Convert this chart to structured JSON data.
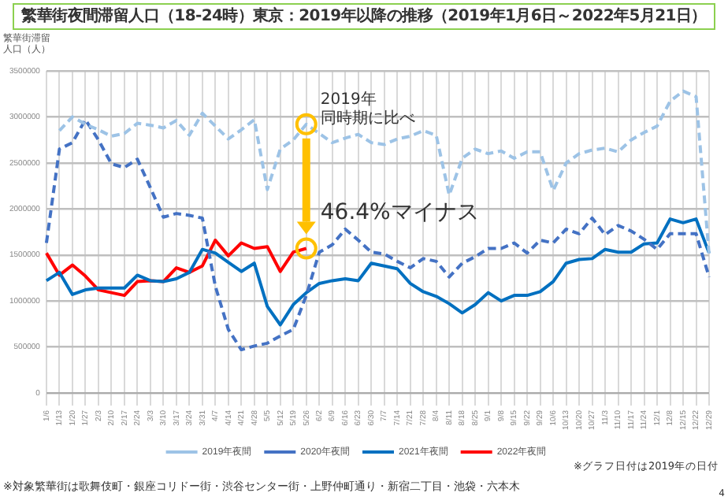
{
  "chart_data": {
    "type": "line",
    "title": "繁華街夜間滞留人口（18-24時）東京：2019年以降の推移（2019年1月6日～2022年5月21日）",
    "ylabel": "繁華街滞留人口（人）",
    "categories": [
      "1/6",
      "1/13",
      "1/20",
      "1/27",
      "2/3",
      "2/10",
      "2/17",
      "2/24",
      "3/3",
      "3/10",
      "3/17",
      "3/24",
      "3/31",
      "4/7",
      "4/14",
      "4/21",
      "4/28",
      "5/5",
      "5/12",
      "5/19",
      "5/26",
      "6/2",
      "6/9",
      "6/16",
      "6/23",
      "6/30",
      "7/7",
      "7/14",
      "7/21",
      "7/28",
      "8/4",
      "8/11",
      "8/18",
      "8/25",
      "9/1",
      "9/8",
      "9/15",
      "9/22",
      "9/29",
      "10/6",
      "10/13",
      "10/20",
      "10/27",
      "11/3",
      "11/10",
      "11/17",
      "11/24",
      "12/1",
      "12/8",
      "12/15",
      "12/22",
      "12/29"
    ],
    "series": [
      {
        "name": "2019年夜間",
        "color": "#9dc3e6",
        "line_style": "dashed",
        "values": [
          null,
          2850000,
          3000000,
          2920000,
          2860000,
          2790000,
          2820000,
          2930000,
          2910000,
          2880000,
          2960000,
          2800000,
          3040000,
          2900000,
          2760000,
          2860000,
          2970000,
          2210000,
          2650000,
          2750000,
          2920000,
          2820000,
          2720000,
          2770000,
          2810000,
          2720000,
          2700000,
          2760000,
          2790000,
          2850000,
          2800000,
          2150000,
          2550000,
          2650000,
          2600000,
          2630000,
          2550000,
          2620000,
          2620000,
          2200000,
          2500000,
          2600000,
          2640000,
          2660000,
          2620000,
          2750000,
          2830000,
          2900000,
          3170000,
          3280000,
          3220000,
          1500000
        ]
      },
      {
        "name": "2020年夜間",
        "color": "#4472c4",
        "line_style": "dashed",
        "values": [
          1630000,
          2650000,
          2720000,
          2970000,
          2750000,
          2490000,
          2450000,
          2540000,
          2230000,
          1910000,
          1950000,
          1930000,
          1900000,
          1160000,
          690000,
          470000,
          510000,
          540000,
          620000,
          690000,
          1060000,
          1530000,
          1610000,
          1780000,
          1660000,
          1530000,
          1510000,
          1430000,
          1360000,
          1460000,
          1430000,
          1260000,
          1410000,
          1480000,
          1570000,
          1570000,
          1630000,
          1520000,
          1660000,
          1630000,
          1780000,
          1730000,
          1900000,
          1720000,
          1820000,
          1760000,
          1670000,
          1560000,
          1730000,
          1730000,
          1730000,
          1260000
        ]
      },
      {
        "name": "2021年夜間",
        "color": "#0070c0",
        "line_style": "solid",
        "values": [
          1220000,
          1310000,
          1070000,
          1120000,
          1140000,
          1140000,
          1140000,
          1280000,
          1220000,
          1210000,
          1240000,
          1310000,
          1560000,
          1520000,
          1420000,
          1320000,
          1410000,
          940000,
          740000,
          960000,
          1090000,
          1190000,
          1220000,
          1240000,
          1220000,
          1410000,
          1380000,
          1350000,
          1190000,
          1100000,
          1050000,
          970000,
          870000,
          960000,
          1090000,
          1000000,
          1060000,
          1060000,
          1100000,
          1210000,
          1410000,
          1450000,
          1460000,
          1560000,
          1530000,
          1530000,
          1620000,
          1630000,
          1890000,
          1850000,
          1890000,
          1520000
        ]
      },
      {
        "name": "2022年夜間",
        "color": "#ff0000",
        "line_style": "solid",
        "values": [
          1520000,
          1280000,
          1390000,
          1270000,
          1120000,
          1090000,
          1060000,
          1210000,
          1220000,
          1210000,
          1360000,
          1310000,
          1380000,
          1660000,
          1490000,
          1630000,
          1570000,
          1590000,
          1320000,
          1530000,
          1570000,
          null,
          null,
          null,
          null,
          null,
          null,
          null,
          null,
          null,
          null,
          null,
          null,
          null,
          null,
          null,
          null,
          null,
          null,
          null,
          null,
          null,
          null,
          null,
          null,
          null,
          null,
          null,
          null,
          null,
          null,
          null
        ]
      }
    ],
    "ylim": [
      0,
      3500000
    ],
    "yticks": [
      0,
      500000,
      1000000,
      1500000,
      2000000,
      2500000,
      3000000,
      3500000
    ],
    "grid": true,
    "legend": "bottom",
    "marker": "none",
    "annotations": [
      "2019年",
      "同時期に比べ",
      {
        "text": "46.4%マイナス",
        "x": "5/26",
        "y": 1570000
      },
      "※対象繁華街は歌舞伎町・銀座コリドー街・渋谷センター街・上野仲町通り・新宿二丁目・池袋・六本木",
      "※グラフ日付は2019年の日付",
      "4"
    ]
  }
}
